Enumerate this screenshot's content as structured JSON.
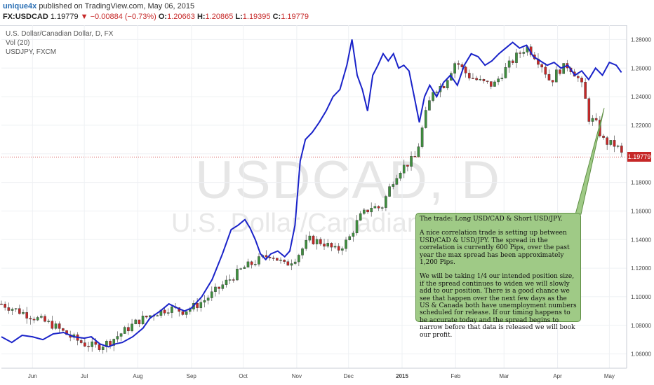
{
  "header": {
    "author": "unique4x",
    "published": "published on TradingView.com, May 06, 2015",
    "symbol": "FX:USDCAD",
    "last": "1.19779",
    "change": "−0.00884 (−0.73%)",
    "open_label": "O:",
    "open": "1.20663",
    "high_label": "H:",
    "high": "1.20865",
    "low_label": "L:",
    "low": "1.19395",
    "close_label": "C:",
    "close": "1.19779"
  },
  "legend": {
    "line1": "U.S. Dollar/Canadian Dollar, D, FX",
    "line2": "Vol (20)",
    "line3": "USDJPY, FXCM"
  },
  "watermark": {
    "main": "USDCAD, D",
    "sub": "U.S. Dollar/Canadian D"
  },
  "price_tag": "1.19779",
  "note": {
    "p1": "The trade:  Long USD/CAD & Short USD/JPY.",
    "p2": "A nice correlation trade is setting up between USD/CAD & USD/JPY.  The spread in the correlation is currently 600 Pips, over the past year the max spread has been approximately 1,200 Pips.",
    "p3": "We will be taking 1/4 our intended position size, if the spread continues to widen we will slowly add to our position.  There is a good chance we see that happen over the next few days as the US & Canada both have unemployment numbers scheduled for release.  If our timing happens to be accurate today and the spread begins to narrow before that data is released we will book our profit."
  },
  "colors": {
    "up": "#3f8f3f",
    "down": "#c62828",
    "usdjpy_line": "#1a23c9",
    "grid": "#eef0f3",
    "note_fill": "#9fca86"
  },
  "chart_data": {
    "type": "line",
    "ylim": [
      1.05,
      1.29
    ],
    "y_ticks": [
      "1.28000",
      "1.26000",
      "1.24000",
      "1.22000",
      "1.20000",
      "1.18000",
      "1.16000",
      "1.14000",
      "1.12000",
      "1.10000",
      "1.08000",
      "1.06000"
    ],
    "x_ticks": [
      {
        "label": "Jun",
        "d": 18
      },
      {
        "label": "Jul",
        "d": 48
      },
      {
        "label": "Aug",
        "d": 79
      },
      {
        "label": "Sep",
        "d": 110
      },
      {
        "label": "Oct",
        "d": 140
      },
      {
        "label": "Nov",
        "d": 171
      },
      {
        "label": "Dec",
        "d": 201
      },
      {
        "label": "2015",
        "d": 232
      },
      {
        "label": "Feb",
        "d": 263
      },
      {
        "label": "Mar",
        "d": 291
      },
      {
        "label": "Apr",
        "d": 322
      },
      {
        "label": "May",
        "d": 352
      }
    ],
    "x_range": [
      0,
      362
    ],
    "series": [
      {
        "name": "USDCAD",
        "kind": "candles",
        "points": [
          {
            "d": 0,
            "v": 1.095
          },
          {
            "d": 10,
            "v": 1.09
          },
          {
            "d": 20,
            "v": 1.085
          },
          {
            "d": 30,
            "v": 1.08
          },
          {
            "d": 40,
            "v": 1.072
          },
          {
            "d": 48,
            "v": 1.067
          },
          {
            "d": 55,
            "v": 1.065
          },
          {
            "d": 62,
            "v": 1.068
          },
          {
            "d": 70,
            "v": 1.075
          },
          {
            "d": 79,
            "v": 1.083
          },
          {
            "d": 88,
            "v": 1.088
          },
          {
            "d": 97,
            "v": 1.092
          },
          {
            "d": 105,
            "v": 1.09
          },
          {
            "d": 110,
            "v": 1.092
          },
          {
            "d": 118,
            "v": 1.098
          },
          {
            "d": 125,
            "v": 1.105
          },
          {
            "d": 132,
            "v": 1.112
          },
          {
            "d": 140,
            "v": 1.12
          },
          {
            "d": 148,
            "v": 1.125
          },
          {
            "d": 156,
            "v": 1.13
          },
          {
            "d": 164,
            "v": 1.122
          },
          {
            "d": 171,
            "v": 1.128
          },
          {
            "d": 178,
            "v": 1.14
          },
          {
            "d": 186,
            "v": 1.138
          },
          {
            "d": 194,
            "v": 1.132
          },
          {
            "d": 201,
            "v": 1.14
          },
          {
            "d": 207,
            "v": 1.155
          },
          {
            "d": 214,
            "v": 1.163
          },
          {
            "d": 220,
            "v": 1.162
          },
          {
            "d": 226,
            "v": 1.18
          },
          {
            "d": 230,
            "v": 1.188
          },
          {
            "d": 234,
            "v": 1.192
          },
          {
            "d": 240,
            "v": 1.198
          },
          {
            "d": 245,
            "v": 1.225
          },
          {
            "d": 250,
            "v": 1.245
          },
          {
            "d": 256,
            "v": 1.248
          },
          {
            "d": 263,
            "v": 1.265
          },
          {
            "d": 270,
            "v": 1.255
          },
          {
            "d": 278,
            "v": 1.25
          },
          {
            "d": 285,
            "v": 1.248
          },
          {
            "d": 291,
            "v": 1.258
          },
          {
            "d": 298,
            "v": 1.268
          },
          {
            "d": 304,
            "v": 1.275
          },
          {
            "d": 308,
            "v": 1.27
          },
          {
            "d": 313,
            "v": 1.262
          },
          {
            "d": 318,
            "v": 1.25
          },
          {
            "d": 322,
            "v": 1.258
          },
          {
            "d": 328,
            "v": 1.262
          },
          {
            "d": 333,
            "v": 1.255
          },
          {
            "d": 337,
            "v": 1.245
          },
          {
            "d": 340,
            "v": 1.225
          },
          {
            "d": 344,
            "v": 1.222
          },
          {
            "d": 348,
            "v": 1.21
          },
          {
            "d": 352,
            "v": 1.207
          },
          {
            "d": 356,
            "v": 1.206
          },
          {
            "d": 360,
            "v": 1.198
          }
        ]
      },
      {
        "name": "USDJPY",
        "kind": "line",
        "points": [
          {
            "d": 0,
            "v": 1.072
          },
          {
            "d": 6,
            "v": 1.068
          },
          {
            "d": 12,
            "v": 1.073
          },
          {
            "d": 18,
            "v": 1.072
          },
          {
            "d": 24,
            "v": 1.07
          },
          {
            "d": 30,
            "v": 1.074
          },
          {
            "d": 36,
            "v": 1.075
          },
          {
            "d": 42,
            "v": 1.072
          },
          {
            "d": 48,
            "v": 1.071
          },
          {
            "d": 52,
            "v": 1.072
          },
          {
            "d": 57,
            "v": 1.067
          },
          {
            "d": 62,
            "v": 1.065
          },
          {
            "d": 66,
            "v": 1.067
          },
          {
            "d": 70,
            "v": 1.068
          },
          {
            "d": 76,
            "v": 1.072
          },
          {
            "d": 82,
            "v": 1.078
          },
          {
            "d": 86,
            "v": 1.085
          },
          {
            "d": 92,
            "v": 1.09
          },
          {
            "d": 97,
            "v": 1.095
          },
          {
            "d": 102,
            "v": 1.092
          },
          {
            "d": 106,
            "v": 1.09
          },
          {
            "d": 110,
            "v": 1.092
          },
          {
            "d": 116,
            "v": 1.1
          },
          {
            "d": 122,
            "v": 1.112
          },
          {
            "d": 128,
            "v": 1.13
          },
          {
            "d": 133,
            "v": 1.147
          },
          {
            "d": 137,
            "v": 1.15
          },
          {
            "d": 141,
            "v": 1.154
          },
          {
            "d": 144,
            "v": 1.148
          },
          {
            "d": 147,
            "v": 1.14
          },
          {
            "d": 150,
            "v": 1.13
          },
          {
            "d": 153,
            "v": 1.126
          },
          {
            "d": 156,
            "v": 1.13
          },
          {
            "d": 160,
            "v": 1.132
          },
          {
            "d": 164,
            "v": 1.128
          },
          {
            "d": 167,
            "v": 1.132
          },
          {
            "d": 170,
            "v": 1.15
          },
          {
            "d": 173,
            "v": 1.195
          },
          {
            "d": 176,
            "v": 1.21
          },
          {
            "d": 180,
            "v": 1.215
          },
          {
            "d": 184,
            "v": 1.222
          },
          {
            "d": 188,
            "v": 1.23
          },
          {
            "d": 192,
            "v": 1.24
          },
          {
            "d": 196,
            "v": 1.245
          },
          {
            "d": 200,
            "v": 1.262
          },
          {
            "d": 203,
            "v": 1.28
          },
          {
            "d": 206,
            "v": 1.255
          },
          {
            "d": 209,
            "v": 1.245
          },
          {
            "d": 212,
            "v": 1.23
          },
          {
            "d": 215,
            "v": 1.255
          },
          {
            "d": 218,
            "v": 1.262
          },
          {
            "d": 221,
            "v": 1.27
          },
          {
            "d": 224,
            "v": 1.265
          },
          {
            "d": 227,
            "v": 1.27
          },
          {
            "d": 230,
            "v": 1.26
          },
          {
            "d": 233,
            "v": 1.262
          },
          {
            "d": 236,
            "v": 1.258
          },
          {
            "d": 239,
            "v": 1.24
          },
          {
            "d": 242,
            "v": 1.222
          },
          {
            "d": 245,
            "v": 1.24
          },
          {
            "d": 248,
            "v": 1.248
          },
          {
            "d": 252,
            "v": 1.24
          },
          {
            "d": 256,
            "v": 1.25
          },
          {
            "d": 260,
            "v": 1.255
          },
          {
            "d": 264,
            "v": 1.248
          },
          {
            "d": 268,
            "v": 1.262
          },
          {
            "d": 272,
            "v": 1.27
          },
          {
            "d": 276,
            "v": 1.268
          },
          {
            "d": 280,
            "v": 1.262
          },
          {
            "d": 284,
            "v": 1.265
          },
          {
            "d": 288,
            "v": 1.27
          },
          {
            "d": 292,
            "v": 1.274
          },
          {
            "d": 296,
            "v": 1.278
          },
          {
            "d": 300,
            "v": 1.274
          },
          {
            "d": 304,
            "v": 1.276
          },
          {
            "d": 308,
            "v": 1.268
          },
          {
            "d": 312,
            "v": 1.265
          },
          {
            "d": 316,
            "v": 1.262
          },
          {
            "d": 320,
            "v": 1.264
          },
          {
            "d": 324,
            "v": 1.26
          },
          {
            "d": 328,
            "v": 1.262
          },
          {
            "d": 332,
            "v": 1.255
          },
          {
            "d": 336,
            "v": 1.258
          },
          {
            "d": 340,
            "v": 1.252
          },
          {
            "d": 344,
            "v": 1.26
          },
          {
            "d": 348,
            "v": 1.255
          },
          {
            "d": 352,
            "v": 1.264
          },
          {
            "d": 356,
            "v": 1.262
          },
          {
            "d": 359,
            "v": 1.257
          }
        ]
      }
    ],
    "current_price": 1.19779,
    "annotation_target": {
      "d": 349,
      "v": 1.232
    }
  }
}
